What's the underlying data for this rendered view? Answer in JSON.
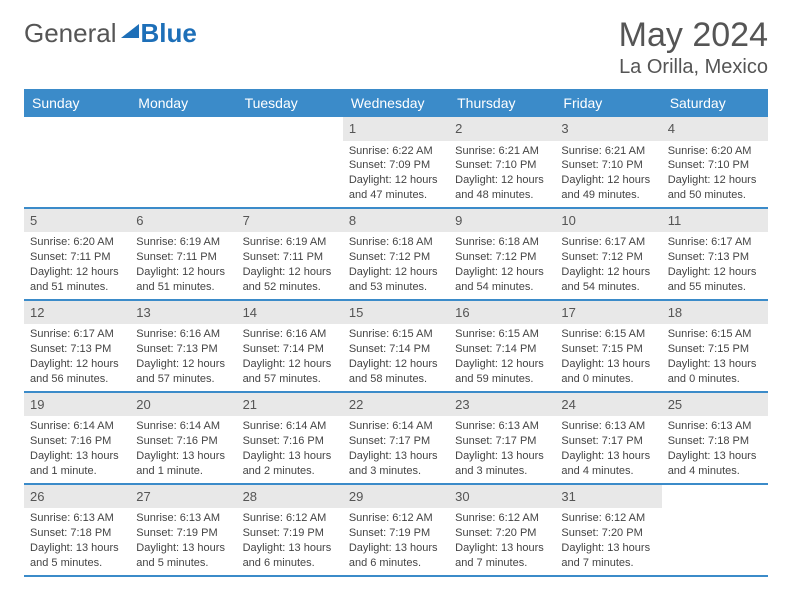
{
  "brand": {
    "text1": "General",
    "text2": "Blue"
  },
  "title": {
    "month": "May 2024",
    "location": "La Orilla, Mexico"
  },
  "colors": {
    "accent": "#3b8bc9",
    "daynum_bg": "#e8e8e8",
    "text": "#444",
    "border": "#3b8bc9"
  },
  "dayHeaders": [
    "Sunday",
    "Monday",
    "Tuesday",
    "Wednesday",
    "Thursday",
    "Friday",
    "Saturday"
  ],
  "weeks": [
    [
      {
        "n": "",
        "sr": "",
        "ss": "",
        "dl1": "",
        "dl2": "",
        "empty": true
      },
      {
        "n": "",
        "sr": "",
        "ss": "",
        "dl1": "",
        "dl2": "",
        "empty": true
      },
      {
        "n": "",
        "sr": "",
        "ss": "",
        "dl1": "",
        "dl2": "",
        "empty": true
      },
      {
        "n": "1",
        "sr": "Sunrise: 6:22 AM",
        "ss": "Sunset: 7:09 PM",
        "dl1": "Daylight: 12 hours",
        "dl2": "and 47 minutes."
      },
      {
        "n": "2",
        "sr": "Sunrise: 6:21 AM",
        "ss": "Sunset: 7:10 PM",
        "dl1": "Daylight: 12 hours",
        "dl2": "and 48 minutes."
      },
      {
        "n": "3",
        "sr": "Sunrise: 6:21 AM",
        "ss": "Sunset: 7:10 PM",
        "dl1": "Daylight: 12 hours",
        "dl2": "and 49 minutes."
      },
      {
        "n": "4",
        "sr": "Sunrise: 6:20 AM",
        "ss": "Sunset: 7:10 PM",
        "dl1": "Daylight: 12 hours",
        "dl2": "and 50 minutes."
      }
    ],
    [
      {
        "n": "5",
        "sr": "Sunrise: 6:20 AM",
        "ss": "Sunset: 7:11 PM",
        "dl1": "Daylight: 12 hours",
        "dl2": "and 51 minutes."
      },
      {
        "n": "6",
        "sr": "Sunrise: 6:19 AM",
        "ss": "Sunset: 7:11 PM",
        "dl1": "Daylight: 12 hours",
        "dl2": "and 51 minutes."
      },
      {
        "n": "7",
        "sr": "Sunrise: 6:19 AM",
        "ss": "Sunset: 7:11 PM",
        "dl1": "Daylight: 12 hours",
        "dl2": "and 52 minutes."
      },
      {
        "n": "8",
        "sr": "Sunrise: 6:18 AM",
        "ss": "Sunset: 7:12 PM",
        "dl1": "Daylight: 12 hours",
        "dl2": "and 53 minutes."
      },
      {
        "n": "9",
        "sr": "Sunrise: 6:18 AM",
        "ss": "Sunset: 7:12 PM",
        "dl1": "Daylight: 12 hours",
        "dl2": "and 54 minutes."
      },
      {
        "n": "10",
        "sr": "Sunrise: 6:17 AM",
        "ss": "Sunset: 7:12 PM",
        "dl1": "Daylight: 12 hours",
        "dl2": "and 54 minutes."
      },
      {
        "n": "11",
        "sr": "Sunrise: 6:17 AM",
        "ss": "Sunset: 7:13 PM",
        "dl1": "Daylight: 12 hours",
        "dl2": "and 55 minutes."
      }
    ],
    [
      {
        "n": "12",
        "sr": "Sunrise: 6:17 AM",
        "ss": "Sunset: 7:13 PM",
        "dl1": "Daylight: 12 hours",
        "dl2": "and 56 minutes."
      },
      {
        "n": "13",
        "sr": "Sunrise: 6:16 AM",
        "ss": "Sunset: 7:13 PM",
        "dl1": "Daylight: 12 hours",
        "dl2": "and 57 minutes."
      },
      {
        "n": "14",
        "sr": "Sunrise: 6:16 AM",
        "ss": "Sunset: 7:14 PM",
        "dl1": "Daylight: 12 hours",
        "dl2": "and 57 minutes."
      },
      {
        "n": "15",
        "sr": "Sunrise: 6:15 AM",
        "ss": "Sunset: 7:14 PM",
        "dl1": "Daylight: 12 hours",
        "dl2": "and 58 minutes."
      },
      {
        "n": "16",
        "sr": "Sunrise: 6:15 AM",
        "ss": "Sunset: 7:14 PM",
        "dl1": "Daylight: 12 hours",
        "dl2": "and 59 minutes."
      },
      {
        "n": "17",
        "sr": "Sunrise: 6:15 AM",
        "ss": "Sunset: 7:15 PM",
        "dl1": "Daylight: 13 hours",
        "dl2": "and 0 minutes."
      },
      {
        "n": "18",
        "sr": "Sunrise: 6:15 AM",
        "ss": "Sunset: 7:15 PM",
        "dl1": "Daylight: 13 hours",
        "dl2": "and 0 minutes."
      }
    ],
    [
      {
        "n": "19",
        "sr": "Sunrise: 6:14 AM",
        "ss": "Sunset: 7:16 PM",
        "dl1": "Daylight: 13 hours",
        "dl2": "and 1 minute."
      },
      {
        "n": "20",
        "sr": "Sunrise: 6:14 AM",
        "ss": "Sunset: 7:16 PM",
        "dl1": "Daylight: 13 hours",
        "dl2": "and 1 minute."
      },
      {
        "n": "21",
        "sr": "Sunrise: 6:14 AM",
        "ss": "Sunset: 7:16 PM",
        "dl1": "Daylight: 13 hours",
        "dl2": "and 2 minutes."
      },
      {
        "n": "22",
        "sr": "Sunrise: 6:14 AM",
        "ss": "Sunset: 7:17 PM",
        "dl1": "Daylight: 13 hours",
        "dl2": "and 3 minutes."
      },
      {
        "n": "23",
        "sr": "Sunrise: 6:13 AM",
        "ss": "Sunset: 7:17 PM",
        "dl1": "Daylight: 13 hours",
        "dl2": "and 3 minutes."
      },
      {
        "n": "24",
        "sr": "Sunrise: 6:13 AM",
        "ss": "Sunset: 7:17 PM",
        "dl1": "Daylight: 13 hours",
        "dl2": "and 4 minutes."
      },
      {
        "n": "25",
        "sr": "Sunrise: 6:13 AM",
        "ss": "Sunset: 7:18 PM",
        "dl1": "Daylight: 13 hours",
        "dl2": "and 4 minutes."
      }
    ],
    [
      {
        "n": "26",
        "sr": "Sunrise: 6:13 AM",
        "ss": "Sunset: 7:18 PM",
        "dl1": "Daylight: 13 hours",
        "dl2": "and 5 minutes."
      },
      {
        "n": "27",
        "sr": "Sunrise: 6:13 AM",
        "ss": "Sunset: 7:19 PM",
        "dl1": "Daylight: 13 hours",
        "dl2": "and 5 minutes."
      },
      {
        "n": "28",
        "sr": "Sunrise: 6:12 AM",
        "ss": "Sunset: 7:19 PM",
        "dl1": "Daylight: 13 hours",
        "dl2": "and 6 minutes."
      },
      {
        "n": "29",
        "sr": "Sunrise: 6:12 AM",
        "ss": "Sunset: 7:19 PM",
        "dl1": "Daylight: 13 hours",
        "dl2": "and 6 minutes."
      },
      {
        "n": "30",
        "sr": "Sunrise: 6:12 AM",
        "ss": "Sunset: 7:20 PM",
        "dl1": "Daylight: 13 hours",
        "dl2": "and 7 minutes."
      },
      {
        "n": "31",
        "sr": "Sunrise: 6:12 AM",
        "ss": "Sunset: 7:20 PM",
        "dl1": "Daylight: 13 hours",
        "dl2": "and 7 minutes."
      },
      {
        "n": "",
        "sr": "",
        "ss": "",
        "dl1": "",
        "dl2": "",
        "empty": true
      }
    ]
  ]
}
